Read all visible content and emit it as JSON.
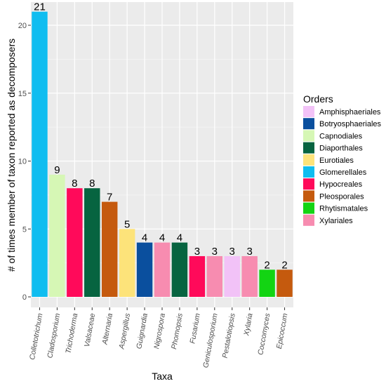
{
  "chart_data": {
    "type": "bar",
    "title": "",
    "xlabel": "Taxa",
    "ylabel": "# of times member of taxon reported as decomposers",
    "ylim": [
      0,
      22
    ],
    "yticks": [
      0,
      5,
      10,
      15,
      20
    ],
    "grid": true,
    "legend_position": "right",
    "legend_title": "Orders",
    "legend": [
      {
        "name": "Amphisphaeriales",
        "color": "#f2c2f7"
      },
      {
        "name": "Botryosphaeriales",
        "color": "#0a4f9e"
      },
      {
        "name": "Capnodiales",
        "color": "#d6f7b5"
      },
      {
        "name": "Diaporthales",
        "color": "#076440"
      },
      {
        "name": "Eurotiales",
        "color": "#fde37a"
      },
      {
        "name": "Glomerellales",
        "color": "#10bdf0"
      },
      {
        "name": "Hypocreales",
        "color": "#ff0a5a"
      },
      {
        "name": "Pleosporales",
        "color": "#c55a0e"
      },
      {
        "name": "Rhytismatales",
        "color": "#13d413"
      },
      {
        "name": "Xylariales",
        "color": "#f78cb0"
      }
    ],
    "categories": [
      "Colletotrichum",
      "Cladosporium",
      "Trichoderma",
      "Valsaceae",
      "Alternaria",
      "Aspergillus",
      "Guignardia",
      "Nigrospora",
      "Phomopsis",
      "Fusarium",
      "Geniculosporium",
      "Pestalotiopsis",
      "Xylaria",
      "Coccomyces",
      "Epicoccum"
    ],
    "values": [
      21,
      9,
      8,
      8,
      7,
      5,
      4,
      4,
      4,
      3,
      3,
      3,
      3,
      2,
      2
    ],
    "data_labels": [
      "21",
      "9",
      "8",
      "8",
      "7",
      "5",
      "4",
      "4",
      "4",
      "3",
      "3",
      "3",
      "3",
      "2",
      "2"
    ],
    "orders": [
      "Glomerellales",
      "Capnodiales",
      "Hypocreales",
      "Diaporthales",
      "Pleosporales",
      "Eurotiales",
      "Botryosphaeriales",
      "Xylariales",
      "Diaporthales",
      "Hypocreales",
      "Xylariales",
      "Amphisphaeriales",
      "Xylariales",
      "Rhytismatales",
      "Pleosporales"
    ]
  }
}
